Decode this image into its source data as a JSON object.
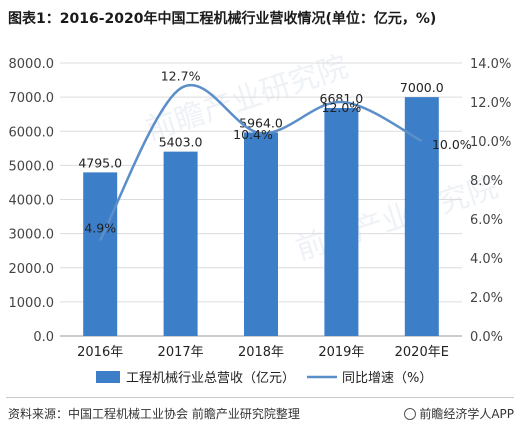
{
  "title": "图表1：2016-2020年中国工程机械行业营收情况(单位：亿元，%)",
  "footer": {
    "source": "资料来源：中国工程机械工业协会 前瞻产业研究院整理",
    "brand": "前瞻经济学人APP"
  },
  "watermark": "前瞻产业研究院",
  "colors": {
    "bar": "#3d7ec9",
    "line": "#5b8fc9",
    "grid": "#dcdcdc",
    "axis_text": "#444444"
  },
  "chart_data": {
    "type": "bar",
    "categories": [
      "2016年",
      "2017年",
      "2018年",
      "2019年",
      "2020年E"
    ],
    "series": [
      {
        "name": "工程机械行业总营收（亿元）",
        "kind": "bar",
        "axis": "left",
        "values": [
          4795.0,
          5403.0,
          5964.0,
          6681.0,
          7000.0
        ],
        "labels": [
          "4795.0",
          "5403.0",
          "5964.0",
          "6681.0",
          "7000.0"
        ]
      },
      {
        "name": "同比增速（%）",
        "kind": "line",
        "axis": "right",
        "values": [
          4.9,
          12.7,
          10.4,
          12.0,
          10.0
        ],
        "labels": [
          "4.9%",
          "12.7%",
          "10.4%",
          "12.0%",
          "10.0%"
        ]
      }
    ],
    "y_left": {
      "min": 0,
      "max": 8000,
      "ticks": [
        "0.0",
        "1000.0",
        "2000.0",
        "3000.0",
        "4000.0",
        "5000.0",
        "6000.0",
        "7000.0",
        "8000.0"
      ]
    },
    "y_right": {
      "min": 0,
      "max": 14,
      "ticks": [
        "0.0%",
        "2.0%",
        "4.0%",
        "6.0%",
        "8.0%",
        "10.0%",
        "12.0%",
        "14.0%"
      ]
    },
    "grid": true,
    "legend_position": "bottom"
  }
}
